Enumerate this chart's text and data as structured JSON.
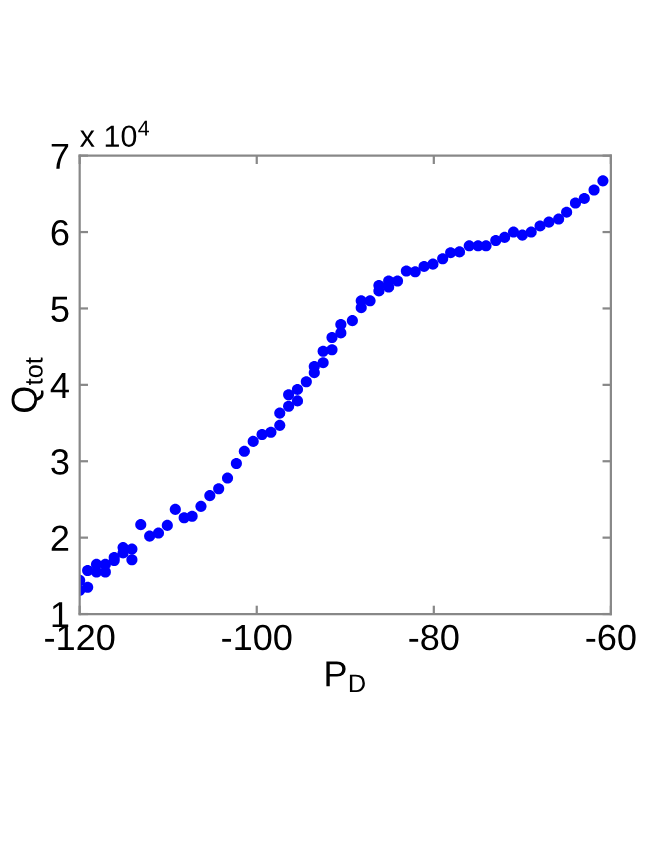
{
  "chart_data": {
    "type": "scatter",
    "xlabel": "P$_{D}$",
    "ylabel": "Q$_{tot}$",
    "annotations": [
      "x 10$^{4}$"
    ],
    "x": [
      -120,
      -120,
      -119.1,
      -119.1,
      -118.1,
      -118.1,
      -117.1,
      -117.1,
      -116.1,
      -116.1,
      -115.1,
      -115.1,
      -114.1,
      -114.1,
      -113.1,
      -112.1,
      -111.1,
      -110.1,
      -109.2,
      -108.2,
      -107.3,
      -106.3,
      -105.3,
      -104.3,
      -103.3,
      -102.3,
      -101.4,
      -100.4,
      -99.4,
      -98.4,
      -97.4,
      -97.4,
      -96.4,
      -96.4,
      -95.4,
      -95.4,
      -94.4,
      -93.5,
      -93.5,
      -92.5,
      -92.5,
      -91.5,
      -91.5,
      -90.5,
      -90.5,
      -89.2,
      -88.2,
      -88.2,
      -87.2,
      -86.2,
      -86.2,
      -85.1,
      -85.1,
      -84.1,
      -83.1,
      -82.1,
      -81.1,
      -80.1,
      -79.0,
      -78.1,
      -77.1,
      -76.0,
      -75.0,
      -74.1,
      -73.0,
      -72.0,
      -71.0,
      -70.0,
      -69.0,
      -68.0,
      -67.0,
      -65.9,
      -65.0,
      -64.0,
      -63.0,
      -61.9,
      -60.9
    ],
    "series": [
      {
        "color": "#0000ff",
        "values": [
          1.44,
          1.31,
          1.35,
          1.57,
          1.65,
          1.55,
          1.65,
          1.55,
          1.7,
          1.74,
          1.87,
          1.8,
          1.85,
          1.71,
          2.17,
          2.02,
          2.06,
          2.16,
          2.37,
          2.26,
          2.28,
          2.41,
          2.55,
          2.64,
          2.78,
          2.97,
          3.13,
          3.26,
          3.35,
          3.38,
          3.47,
          3.63,
          3.72,
          3.87,
          3.79,
          3.94,
          4.04,
          4.16,
          4.24,
          4.29,
          4.44,
          4.46,
          4.62,
          4.68,
          4.79,
          4.84,
          5.01,
          5.1,
          5.1,
          5.23,
          5.3,
          5.36,
          5.28,
          5.36,
          5.49,
          5.48,
          5.55,
          5.58,
          5.65,
          5.73,
          5.74,
          5.82,
          5.82,
          5.82,
          5.89,
          5.93,
          6.0,
          5.96,
          6.0,
          6.08,
          6.13,
          6.17,
          6.26,
          6.38,
          6.44,
          6.55,
          6.67
        ]
      }
    ],
    "xlim": [
      -120,
      -60
    ],
    "xticks": [
      -120,
      -100,
      -80,
      -60
    ],
    "ylim": [
      1,
      7
    ],
    "yticks": [
      1,
      2,
      3,
      4,
      5,
      6,
      7
    ],
    "marker": "circle",
    "grid": false,
    "legend": false
  }
}
